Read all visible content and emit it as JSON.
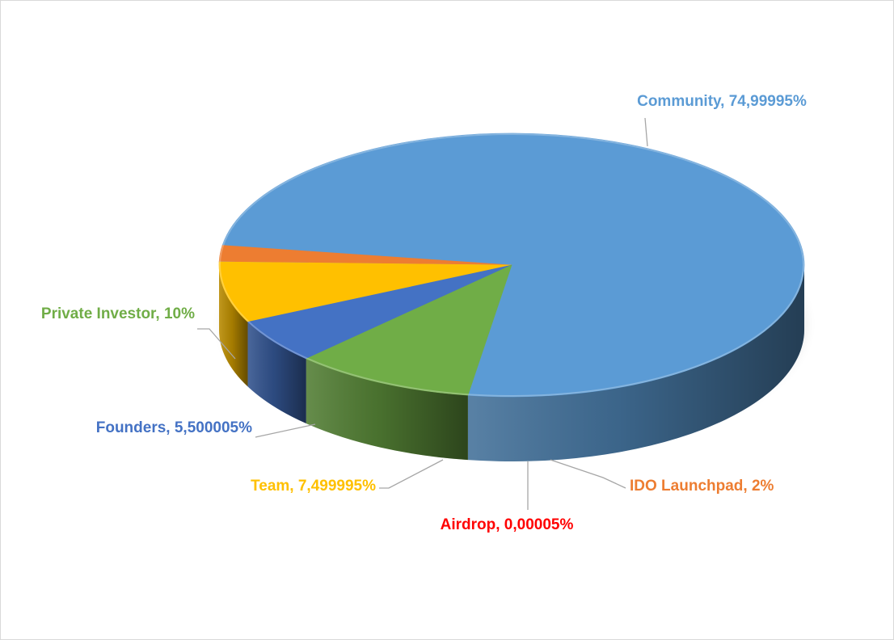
{
  "chart_data": {
    "type": "pie",
    "title": "",
    "legend": "none",
    "slices": [
      {
        "name": "Community",
        "value": 74.99995,
        "label": "Community, 74,99995%",
        "color": "#5b9bd5"
      },
      {
        "name": "IDO Launchpad",
        "value": 2,
        "label": "IDO Launchpad,  2%",
        "color": "#ed7d31"
      },
      {
        "name": "Airdrop",
        "value": 5e-05,
        "label": "Airdrop, 0,00005%",
        "color": "#a5a5a5",
        "label_color": "#ff0000"
      },
      {
        "name": "Team",
        "value": 7.499995,
        "label": "Team, 7,499995%",
        "color": "#ffc000"
      },
      {
        "name": "Founders",
        "value": 5.500005,
        "label": "Founders, 5,500005%",
        "color": "#4472c4"
      },
      {
        "name": "Private Investor",
        "value": 10,
        "label": "Private Investor, 10%",
        "color": "#70ad47"
      }
    ]
  }
}
